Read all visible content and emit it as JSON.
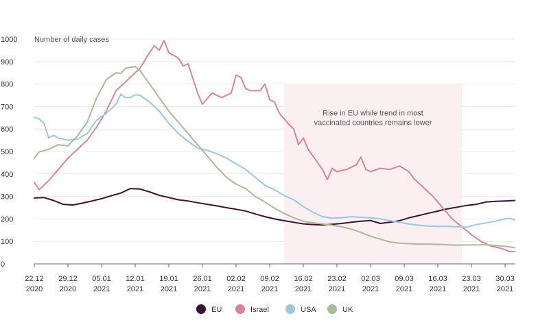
{
  "chart_data": {
    "type": "line",
    "ylabel": "Number of daily cases",
    "ylim": [
      0,
      1000
    ],
    "yticks": [
      "0",
      "100",
      "200",
      "300",
      "400",
      "500",
      "600",
      "700",
      "800",
      "900",
      "1000"
    ],
    "x_start": "2020-12-22",
    "x_end": "2021-04-01",
    "xticks": [
      {
        "date": "2020-12-22",
        "line1": "22.12",
        "line2": "2020"
      },
      {
        "date": "2020-12-29",
        "line1": "29.12",
        "line2": "2020"
      },
      {
        "date": "2021-01-05",
        "line1": "05.01",
        "line2": "2021"
      },
      {
        "date": "2021-01-12",
        "line1": "12.01",
        "line2": "2021"
      },
      {
        "date": "2021-01-19",
        "line1": "19.01",
        "line2": "2021"
      },
      {
        "date": "2021-01-26",
        "line1": "26.01",
        "line2": "2021"
      },
      {
        "date": "2021-02-02",
        "line1": "02.02",
        "line2": "2021"
      },
      {
        "date": "2021-02-09",
        "line1": "09.02",
        "line2": "2021"
      },
      {
        "date": "2021-02-16",
        "line1": "16.02",
        "line2": "2021"
      },
      {
        "date": "2021-02-23",
        "line1": "23.02",
        "line2": "2021"
      },
      {
        "date": "2021-03-02",
        "line1": "02.03",
        "line2": "2021"
      },
      {
        "date": "2021-03-09",
        "line1": "09.03",
        "line2": "2021"
      },
      {
        "date": "2021-03-16",
        "line1": "16.03",
        "line2": "2021"
      },
      {
        "date": "2021-03-23",
        "line1": "23.03",
        "line2": "2021"
      },
      {
        "date": "2021-03-30",
        "line1": "30.03",
        "line2": "2021"
      }
    ],
    "grid": "horizontal",
    "legend_position": "bottom-center",
    "annotation": {
      "text_line1": "Rise in EU while trend in most",
      "text_line2": "vaccinated countries remains lower",
      "x_from": "2021-02-12",
      "x_to": "2021-03-21",
      "y_top": 800,
      "fill": "#fbeff1"
    },
    "series": [
      {
        "name": "EU",
        "color": "#3b1230",
        "points": [
          [
            "2020-12-22",
            293
          ],
          [
            "2020-12-24",
            295
          ],
          [
            "2020-12-26",
            282
          ],
          [
            "2020-12-28",
            265
          ],
          [
            "2020-12-30",
            262
          ],
          [
            "2021-01-01",
            270
          ],
          [
            "2021-01-03",
            280
          ],
          [
            "2021-01-05",
            290
          ],
          [
            "2021-01-07",
            303
          ],
          [
            "2021-01-09",
            315
          ],
          [
            "2021-01-11",
            335
          ],
          [
            "2021-01-13",
            333
          ],
          [
            "2021-01-15",
            320
          ],
          [
            "2021-01-17",
            305
          ],
          [
            "2021-01-19",
            295
          ],
          [
            "2021-01-21",
            285
          ],
          [
            "2021-01-23",
            280
          ],
          [
            "2021-01-25",
            272
          ],
          [
            "2021-01-27",
            265
          ],
          [
            "2021-01-29",
            258
          ],
          [
            "2021-01-31",
            250
          ],
          [
            "2021-02-02",
            243
          ],
          [
            "2021-02-04",
            235
          ],
          [
            "2021-02-06",
            222
          ],
          [
            "2021-02-08",
            210
          ],
          [
            "2021-02-10",
            200
          ],
          [
            "2021-02-12",
            192
          ],
          [
            "2021-02-14",
            185
          ],
          [
            "2021-02-16",
            178
          ],
          [
            "2021-02-18",
            175
          ],
          [
            "2021-02-20",
            173
          ],
          [
            "2021-02-22",
            176
          ],
          [
            "2021-02-24",
            180
          ],
          [
            "2021-02-26",
            185
          ],
          [
            "2021-02-28",
            190
          ],
          [
            "2021-03-02",
            193
          ],
          [
            "2021-03-04",
            180
          ],
          [
            "2021-03-06",
            185
          ],
          [
            "2021-03-08",
            192
          ],
          [
            "2021-03-10",
            205
          ],
          [
            "2021-03-12",
            215
          ],
          [
            "2021-03-14",
            225
          ],
          [
            "2021-03-16",
            235
          ],
          [
            "2021-03-18",
            245
          ],
          [
            "2021-03-20",
            252
          ],
          [
            "2021-03-22",
            260
          ],
          [
            "2021-03-24",
            265
          ],
          [
            "2021-03-26",
            275
          ],
          [
            "2021-03-28",
            278
          ],
          [
            "2021-03-30",
            280
          ],
          [
            "2021-04-01",
            282
          ]
        ]
      },
      {
        "name": "Israel",
        "color": "#d98593",
        "points": [
          [
            "2020-12-22",
            362
          ],
          [
            "2020-12-23",
            330
          ],
          [
            "2020-12-25",
            370
          ],
          [
            "2020-12-27",
            420
          ],
          [
            "2020-12-29",
            470
          ],
          [
            "2020-12-31",
            510
          ],
          [
            "2021-01-02",
            550
          ],
          [
            "2021-01-04",
            610
          ],
          [
            "2021-01-06",
            680
          ],
          [
            "2021-01-08",
            770
          ],
          [
            "2021-01-10",
            810
          ],
          [
            "2021-01-12",
            850
          ],
          [
            "2021-01-13",
            870
          ],
          [
            "2021-01-15",
            940
          ],
          [
            "2021-01-16",
            970
          ],
          [
            "2021-01-17",
            950
          ],
          [
            "2021-01-18",
            993
          ],
          [
            "2021-01-19",
            940
          ],
          [
            "2021-01-21",
            915
          ],
          [
            "2021-01-22",
            880
          ],
          [
            "2021-01-23",
            890
          ],
          [
            "2021-01-25",
            760
          ],
          [
            "2021-01-26",
            710
          ],
          [
            "2021-01-28",
            760
          ],
          [
            "2021-01-30",
            740
          ],
          [
            "2021-02-01",
            760
          ],
          [
            "2021-02-02",
            840
          ],
          [
            "2021-02-03",
            830
          ],
          [
            "2021-02-04",
            780
          ],
          [
            "2021-02-05",
            770
          ],
          [
            "2021-02-07",
            770
          ],
          [
            "2021-02-08",
            800
          ],
          [
            "2021-02-09",
            730
          ],
          [
            "2021-02-10",
            720
          ],
          [
            "2021-02-11",
            670
          ],
          [
            "2021-02-13",
            620
          ],
          [
            "2021-02-14",
            600
          ],
          [
            "2021-02-15",
            530
          ],
          [
            "2021-02-16",
            560
          ],
          [
            "2021-02-17",
            510
          ],
          [
            "2021-02-19",
            450
          ],
          [
            "2021-02-20",
            420
          ],
          [
            "2021-02-21",
            375
          ],
          [
            "2021-02-22",
            425
          ],
          [
            "2021-02-23",
            410
          ],
          [
            "2021-02-25",
            420
          ],
          [
            "2021-02-27",
            440
          ],
          [
            "2021-02-28",
            475
          ],
          [
            "2021-03-01",
            420
          ],
          [
            "2021-03-02",
            410
          ],
          [
            "2021-03-04",
            425
          ],
          [
            "2021-03-06",
            420
          ],
          [
            "2021-03-08",
            435
          ],
          [
            "2021-03-10",
            410
          ],
          [
            "2021-03-11",
            380
          ],
          [
            "2021-03-13",
            340
          ],
          [
            "2021-03-15",
            300
          ],
          [
            "2021-03-17",
            250
          ],
          [
            "2021-03-19",
            200
          ],
          [
            "2021-03-21",
            165
          ],
          [
            "2021-03-23",
            130
          ],
          [
            "2021-03-25",
            100
          ],
          [
            "2021-03-27",
            80
          ],
          [
            "2021-03-29",
            70
          ],
          [
            "2021-03-31",
            55
          ],
          [
            "2021-04-01",
            55
          ]
        ]
      },
      {
        "name": "USA",
        "color": "#9ec6dd",
        "points": [
          [
            "2020-12-22",
            652
          ],
          [
            "2020-12-23",
            645
          ],
          [
            "2020-12-24",
            625
          ],
          [
            "2020-12-25",
            560
          ],
          [
            "2020-12-26",
            572
          ],
          [
            "2020-12-27",
            560
          ],
          [
            "2020-12-29",
            550
          ],
          [
            "2020-12-31",
            555
          ],
          [
            "2021-01-02",
            580
          ],
          [
            "2021-01-04",
            640
          ],
          [
            "2021-01-06",
            670
          ],
          [
            "2021-01-08",
            710
          ],
          [
            "2021-01-09",
            755
          ],
          [
            "2021-01-10",
            740
          ],
          [
            "2021-01-11",
            740
          ],
          [
            "2021-01-12",
            752
          ],
          [
            "2021-01-13",
            750
          ],
          [
            "2021-01-15",
            720
          ],
          [
            "2021-01-17",
            680
          ],
          [
            "2021-01-19",
            625
          ],
          [
            "2021-01-21",
            580
          ],
          [
            "2021-01-23",
            545
          ],
          [
            "2021-01-25",
            515
          ],
          [
            "2021-01-27",
            505
          ],
          [
            "2021-01-29",
            490
          ],
          [
            "2021-01-31",
            470
          ],
          [
            "2021-02-02",
            445
          ],
          [
            "2021-02-04",
            420
          ],
          [
            "2021-02-06",
            385
          ],
          [
            "2021-02-08",
            350
          ],
          [
            "2021-02-10",
            330
          ],
          [
            "2021-02-12",
            305
          ],
          [
            "2021-02-14",
            285
          ],
          [
            "2021-02-16",
            255
          ],
          [
            "2021-02-18",
            230
          ],
          [
            "2021-02-20",
            210
          ],
          [
            "2021-02-22",
            203
          ],
          [
            "2021-02-24",
            205
          ],
          [
            "2021-02-26",
            210
          ],
          [
            "2021-02-28",
            207
          ],
          [
            "2021-03-02",
            205
          ],
          [
            "2021-03-04",
            200
          ],
          [
            "2021-03-06",
            192
          ],
          [
            "2021-03-08",
            185
          ],
          [
            "2021-03-10",
            177
          ],
          [
            "2021-03-12",
            172
          ],
          [
            "2021-03-14",
            168
          ],
          [
            "2021-03-16",
            167
          ],
          [
            "2021-03-18",
            167
          ],
          [
            "2021-03-20",
            165
          ],
          [
            "2021-03-22",
            163
          ],
          [
            "2021-03-24",
            175
          ],
          [
            "2021-03-26",
            182
          ],
          [
            "2021-03-28",
            190
          ],
          [
            "2021-03-30",
            200
          ],
          [
            "2021-03-31",
            203
          ],
          [
            "2021-04-01",
            195
          ]
        ]
      },
      {
        "name": "UK",
        "color": "#aab998",
        "points": [
          [
            "2020-12-22",
            470
          ],
          [
            "2020-12-23",
            498
          ],
          [
            "2020-12-25",
            510
          ],
          [
            "2020-12-27",
            530
          ],
          [
            "2020-12-29",
            525
          ],
          [
            "2020-12-31",
            570
          ],
          [
            "2021-01-02",
            630
          ],
          [
            "2021-01-04",
            740
          ],
          [
            "2021-01-06",
            820
          ],
          [
            "2021-01-08",
            850
          ],
          [
            "2021-01-09",
            848
          ],
          [
            "2021-01-10",
            870
          ],
          [
            "2021-01-12",
            878
          ],
          [
            "2021-01-13",
            860
          ],
          [
            "2021-01-15",
            800
          ],
          [
            "2021-01-17",
            740
          ],
          [
            "2021-01-19",
            680
          ],
          [
            "2021-01-21",
            630
          ],
          [
            "2021-01-23",
            580
          ],
          [
            "2021-01-25",
            530
          ],
          [
            "2021-01-27",
            480
          ],
          [
            "2021-01-29",
            430
          ],
          [
            "2021-01-31",
            385
          ],
          [
            "2021-02-02",
            355
          ],
          [
            "2021-02-04",
            335
          ],
          [
            "2021-02-06",
            300
          ],
          [
            "2021-02-08",
            275
          ],
          [
            "2021-02-10",
            248
          ],
          [
            "2021-02-12",
            225
          ],
          [
            "2021-02-14",
            205
          ],
          [
            "2021-02-16",
            190
          ],
          [
            "2021-02-18",
            183
          ],
          [
            "2021-02-20",
            178
          ],
          [
            "2021-02-22",
            172
          ],
          [
            "2021-02-24",
            165
          ],
          [
            "2021-02-26",
            155
          ],
          [
            "2021-02-28",
            140
          ],
          [
            "2021-03-02",
            123
          ],
          [
            "2021-03-04",
            110
          ],
          [
            "2021-03-06",
            98
          ],
          [
            "2021-03-08",
            92
          ],
          [
            "2021-03-10",
            90
          ],
          [
            "2021-03-12",
            88
          ],
          [
            "2021-03-14",
            88
          ],
          [
            "2021-03-16",
            87
          ],
          [
            "2021-03-18",
            85
          ],
          [
            "2021-03-20",
            83
          ],
          [
            "2021-03-22",
            84
          ],
          [
            "2021-03-24",
            84
          ],
          [
            "2021-03-26",
            85
          ],
          [
            "2021-03-28",
            82
          ],
          [
            "2021-03-30",
            78
          ],
          [
            "2021-04-01",
            72
          ]
        ]
      }
    ]
  }
}
